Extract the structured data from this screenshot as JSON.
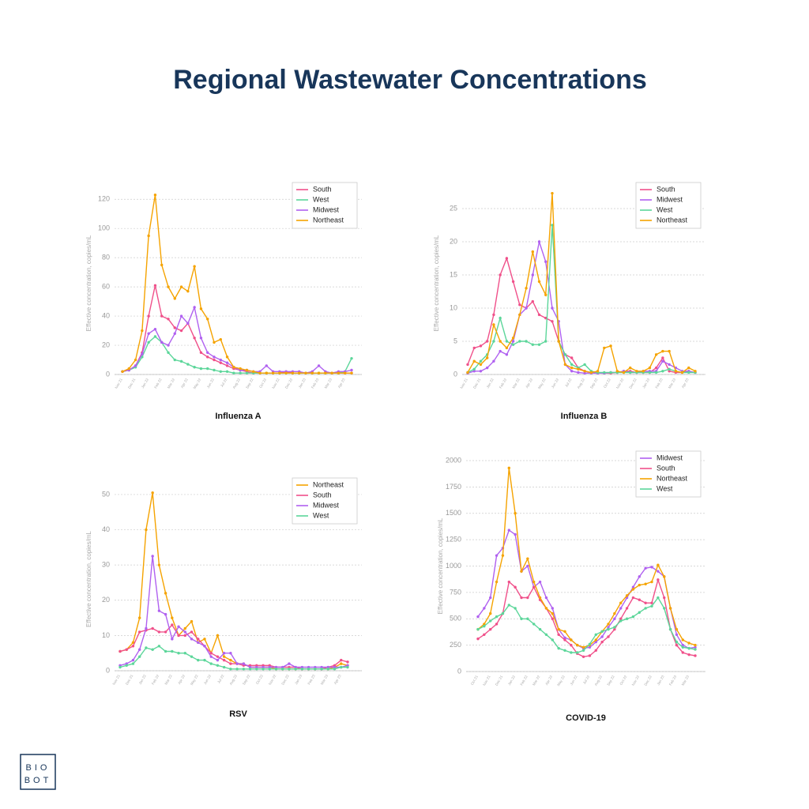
{
  "title": "Regional Wastewater Concentrations",
  "logo": {
    "line1": "BIO",
    "line2": "BOT"
  },
  "chart_data": [
    {
      "type": "line",
      "title": "Influenza A",
      "ylabel": "Effective concentration, copies/mL",
      "ylim": [
        0,
        125
      ],
      "yticks": [
        0,
        20,
        40,
        60,
        80,
        100,
        120
      ],
      "grid": true,
      "legend": "upper right",
      "categories": [
        "Nov 21",
        null,
        "Dec 21",
        null,
        "Jan 22",
        null,
        "Feb 22",
        null,
        "Mar 22",
        null,
        "Apr 22",
        null,
        "May 22",
        null,
        "Jun 22",
        null,
        "Jul 22",
        null,
        "Aug 22",
        null,
        "Sep 22",
        null,
        "Oct 22",
        null,
        "Nov 22",
        null,
        "Dec 22",
        null,
        "Jan 23",
        null,
        "Feb 23",
        null,
        "Mar 23",
        null,
        "Apr 23",
        null
      ],
      "series": [
        {
          "name": "South",
          "color": "#f0508a",
          "values": [
            2,
            3,
            6,
            15,
            40,
            61,
            40,
            38,
            32,
            30,
            35,
            25,
            15,
            12,
            10,
            8,
            6,
            4,
            3,
            2,
            1,
            1,
            1,
            1,
            1,
            2,
            1,
            1,
            1,
            1,
            1,
            1,
            1,
            1,
            1,
            1
          ]
        },
        {
          "name": "West",
          "color": "#5cd69a",
          "values": [
            2,
            3,
            5,
            12,
            22,
            26,
            22,
            15,
            10,
            9,
            7,
            5,
            4,
            4,
            3,
            2,
            2,
            1,
            1,
            1,
            1,
            1,
            1,
            1,
            1,
            1,
            1,
            1,
            1,
            1,
            1,
            1,
            1,
            1,
            2,
            11
          ]
        },
        {
          "name": "Midwest",
          "color": "#b061f0",
          "values": [
            2,
            3,
            6,
            14,
            28,
            31,
            22,
            20,
            28,
            40,
            35,
            46,
            25,
            15,
            12,
            10,
            8,
            5,
            3,
            3,
            2,
            2,
            6,
            2,
            2,
            2,
            2,
            2,
            1,
            2,
            6,
            2,
            1,
            2,
            2,
            3
          ]
        },
        {
          "name": "Northeast",
          "color": "#f5a300",
          "values": [
            2,
            4,
            10,
            30,
            95,
            123,
            75,
            60,
            52,
            60,
            57,
            74,
            45,
            38,
            22,
            24,
            12,
            5,
            4,
            3,
            2,
            1,
            1,
            1,
            1,
            1,
            1,
            1,
            1,
            1,
            1,
            1,
            1,
            1,
            1,
            1
          ]
        }
      ]
    },
    {
      "type": "line",
      "title": "Influenza B",
      "ylabel": "Effective concentration, copies/mL",
      "ylim": [
        0,
        27.5
      ],
      "yticks": [
        0,
        5,
        10,
        15,
        20,
        25
      ],
      "grid": true,
      "legend": "upper right",
      "categories": [
        "Nov 21",
        null,
        "Dec 21",
        null,
        "Jan 22",
        null,
        "Feb 22",
        null,
        "Mar 22",
        null,
        "Apr 22",
        null,
        "May 22",
        null,
        "Jun 22",
        null,
        "Jul 22",
        null,
        "Aug 22",
        null,
        "Sep 22",
        null,
        "Oct 22",
        null,
        "Nov 22",
        null,
        "Dec 22",
        null,
        "Jan 23",
        null,
        "Feb 23",
        null,
        "Mar 23",
        null,
        "Apr 23",
        null
      ],
      "series": [
        {
          "name": "South",
          "color": "#f0508a",
          "values": [
            1.5,
            4,
            4.3,
            5,
            9,
            15,
            17.5,
            14,
            10.5,
            10,
            11,
            9,
            8.5,
            8,
            5,
            3,
            2.5,
            1,
            0.5,
            0.3,
            0.2,
            0.2,
            0.2,
            0.3,
            0.5,
            0.5,
            0.3,
            0.3,
            0.3,
            1,
            2.5,
            0.5,
            0.3,
            0.3,
            0.5,
            0.3
          ]
        },
        {
          "name": "Midwest",
          "color": "#b061f0",
          "values": [
            0.2,
            0.5,
            0.5,
            1,
            2,
            3.5,
            3,
            5,
            9,
            10,
            15,
            20,
            17,
            10,
            8,
            1.5,
            0.5,
            0.3,
            0.2,
            0.2,
            0.2,
            0.2,
            0.3,
            0.3,
            0.5,
            0.3,
            0.3,
            0.5,
            0.5,
            0.5,
            2,
            1.5,
            1,
            0.5,
            0.5,
            0.3
          ]
        },
        {
          "name": "West",
          "color": "#5cd69a",
          "values": [
            0.3,
            0.8,
            2,
            3,
            5,
            8.5,
            5,
            4.5,
            5,
            5,
            4.5,
            4.5,
            5,
            22.5,
            5,
            3,
            1.5,
            1,
            1.5,
            0.5,
            0.3,
            0.3,
            0.3,
            0.3,
            0.3,
            0.3,
            0.3,
            0.3,
            0.3,
            0.3,
            0.5,
            0.8,
            0.5,
            0.3,
            0.3,
            0.3
          ]
        },
        {
          "name": "Northeast",
          "color": "#f5a300",
          "values": [
            0.3,
            2,
            1.5,
            2.5,
            7.5,
            5,
            4,
            5.5,
            9,
            13,
            18.5,
            14,
            12,
            27.3,
            5,
            1.5,
            1,
            0.8,
            0.5,
            0.3,
            0.5,
            4,
            4.3,
            0.5,
            0.3,
            1,
            0.5,
            0.5,
            1,
            3,
            3.5,
            3.5,
            0.5,
            0.3,
            1,
            0.5
          ]
        }
      ]
    },
    {
      "type": "line",
      "title": "RSV",
      "ylabel": "Effective concentration, copies/mL",
      "ylim": [
        0,
        52
      ],
      "yticks": [
        0,
        10,
        20,
        30,
        40,
        50
      ],
      "grid": true,
      "legend": "upper right",
      "categories": [
        "Nov 21",
        null,
        "Dec 21",
        null,
        "Jan 22",
        null,
        "Feb 22",
        null,
        "Mar 22",
        null,
        "Apr 22",
        null,
        "May 22",
        null,
        "Jun 22",
        null,
        "Jul 22",
        null,
        "Aug 22",
        null,
        "Sep 22",
        null,
        "Oct 22",
        null,
        "Nov 22",
        null,
        "Dec 22",
        null,
        "Jan 23",
        null,
        "Feb 23",
        null,
        "Mar 23",
        null,
        "Apr 23",
        null
      ],
      "series": [
        {
          "name": "Northeast",
          "color": "#f5a300",
          "values": [
            5.5,
            6,
            8,
            15,
            40,
            50.5,
            30,
            22,
            15,
            10,
            12,
            14,
            8,
            9,
            5,
            10,
            4,
            3,
            2,
            2,
            1,
            1,
            1,
            1,
            0.5,
            0.5,
            0.5,
            0.5,
            0.5,
            0.5,
            0.5,
            0.5,
            0.5,
            1,
            2,
            1.5
          ]
        },
        {
          "name": "South",
          "color": "#f0508a",
          "values": [
            5.5,
            6,
            7,
            11,
            11.5,
            12,
            11,
            11,
            13,
            10,
            10,
            11,
            9,
            7,
            5,
            4,
            3,
            2,
            2,
            1.5,
            1.5,
            1.5,
            1.5,
            1.5,
            1,
            1,
            1,
            1,
            0.5,
            0.5,
            0.5,
            0.5,
            1,
            1.5,
            3,
            2.5
          ]
        },
        {
          "name": "Midwest",
          "color": "#b061f0",
          "values": [
            1.5,
            2,
            3,
            6,
            12,
            32.5,
            17,
            16,
            9,
            12.5,
            11,
            9,
            8,
            7,
            4,
            3,
            5,
            5,
            2,
            2,
            1,
            1,
            1,
            1,
            1,
            1,
            2,
            1,
            1,
            1,
            1,
            1,
            1,
            1,
            1,
            1.5
          ]
        },
        {
          "name": "West",
          "color": "#5cd69a",
          "values": [
            1,
            1.5,
            2,
            4,
            6.5,
            6,
            7,
            5.5,
            5.5,
            5,
            5,
            4,
            3,
            3,
            2,
            1.5,
            1,
            0.5,
            0.5,
            0.5,
            0.5,
            0.5,
            0.5,
            0.5,
            0.5,
            0.5,
            0.5,
            0.5,
            0.5,
            0.5,
            0.5,
            0.5,
            0.5,
            0.5,
            1,
            1
          ]
        }
      ]
    },
    {
      "type": "line",
      "title": "COVID-19",
      "ylabel": "Effective concentration, copies/mL",
      "ylim": [
        0,
        2000
      ],
      "yticks": [
        0,
        250,
        500,
        750,
        1000,
        1250,
        1500,
        1750,
        2000
      ],
      "grid": true,
      "legend": "upper right",
      "categories": [
        "Oct 21",
        null,
        "Nov 21",
        null,
        "Dec 21",
        null,
        "Jan 22",
        null,
        "Feb 22",
        null,
        "Mar 22",
        null,
        "Apr 22",
        null,
        "May 22",
        null,
        "Jun 22",
        null,
        "Jul 22",
        null,
        "Aug 22",
        null,
        "Sep 22",
        null,
        "Oct 22",
        null,
        "Nov 22",
        null,
        "Dec 22",
        null,
        "Jan 23",
        null,
        "Feb 23",
        null,
        "Mar 23",
        null
      ],
      "series": [
        {
          "name": "Midwest",
          "color": "#b061f0",
          "values": [
            520,
            600,
            700,
            1100,
            1170,
            1340,
            1300,
            950,
            1000,
            800,
            850,
            700,
            600,
            400,
            320,
            300,
            250,
            220,
            230,
            280,
            330,
            420,
            500,
            600,
            700,
            800,
            900,
            980,
            990,
            950,
            900,
            600,
            350,
            250,
            220,
            230
          ]
        },
        {
          "name": "South",
          "color": "#f0508a",
          "values": [
            310,
            350,
            400,
            450,
            550,
            850,
            800,
            700,
            700,
            800,
            680,
            600,
            500,
            350,
            300,
            250,
            170,
            140,
            150,
            200,
            280,
            330,
            400,
            500,
            600,
            700,
            680,
            650,
            650,
            870,
            700,
            400,
            250,
            180,
            160,
            150
          ]
        },
        {
          "name": "Northeast",
          "color": "#f5a300",
          "values": [
            400,
            450,
            550,
            850,
            1100,
            1930,
            1500,
            950,
            1070,
            850,
            700,
            600,
            550,
            400,
            380,
            300,
            250,
            230,
            250,
            300,
            380,
            450,
            550,
            650,
            720,
            780,
            820,
            830,
            850,
            1010,
            900,
            600,
            400,
            300,
            270,
            250
          ]
        },
        {
          "name": "West",
          "color": "#5cd69a",
          "values": [
            400,
            430,
            480,
            520,
            550,
            630,
            600,
            500,
            500,
            450,
            400,
            350,
            300,
            220,
            200,
            180,
            180,
            200,
            260,
            350,
            380,
            400,
            420,
            480,
            500,
            520,
            560,
            600,
            620,
            700,
            600,
            400,
            280,
            230,
            220,
            210
          ]
        }
      ]
    }
  ]
}
